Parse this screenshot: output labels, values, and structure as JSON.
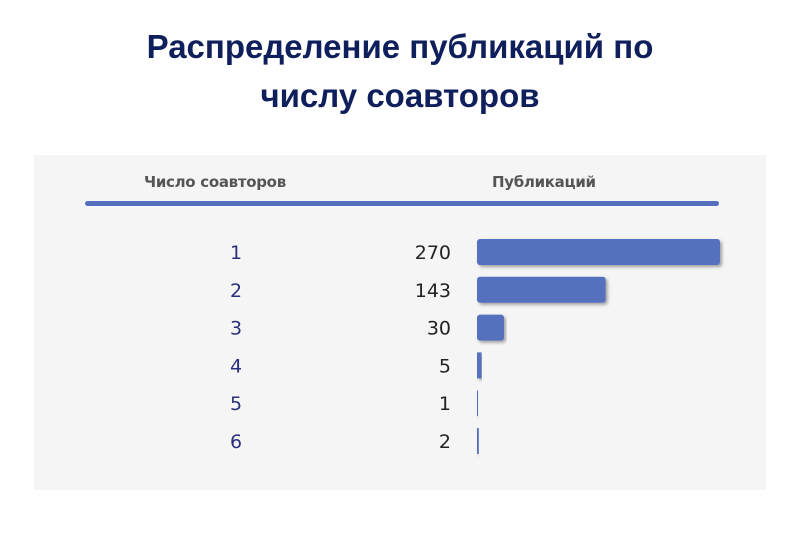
{
  "title_lines": [
    "Распределение публикаций по",
    "числу соавторов"
  ],
  "chart_data": {
    "type": "bar",
    "orientation": "horizontal",
    "table_headers": [
      "Число соавторов",
      "Публикаций"
    ],
    "categories": [
      "1",
      "2",
      "3",
      "4",
      "5",
      "6"
    ],
    "values": [
      270,
      143,
      30,
      5,
      1,
      2
    ],
    "bar_color": "#5470bd",
    "category_color": "#2b2f7a",
    "value_color": "#222222"
  }
}
